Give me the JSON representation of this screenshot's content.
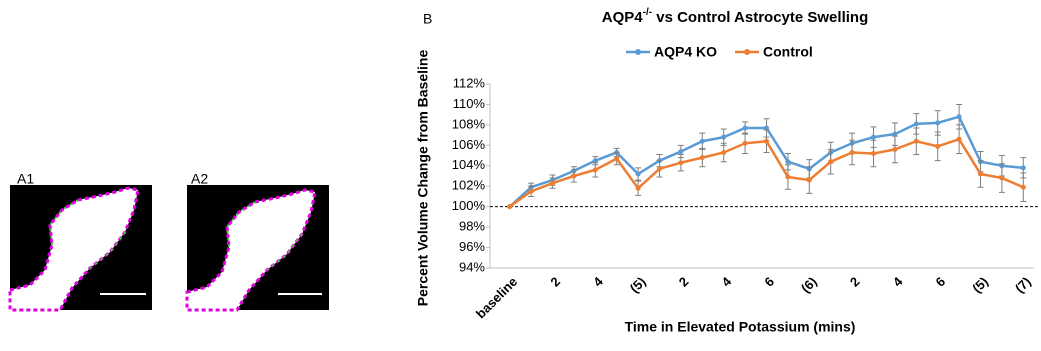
{
  "panels": {
    "a1": "A1",
    "a2": "A2",
    "b": "B"
  },
  "chart_data": {
    "type": "line",
    "title": {
      "main": "AQP4",
      "superscript": "-/-",
      "rest": " vs Control Astrocyte Swelling"
    },
    "x_label": "Time in Elevated Potassium  (mins)",
    "y_label": "Percent Volume Change from Baseline",
    "categories": [
      "baseline",
      null,
      "2",
      null,
      "4",
      null,
      "(5)",
      null,
      "2",
      null,
      "4",
      null,
      "6",
      null,
      "(6)",
      null,
      "2",
      null,
      "4",
      null,
      "6",
      null,
      "(5)",
      null,
      "(7)"
    ],
    "series": [
      {
        "name": "AQP4 KO",
        "color": "#5b9bd5",
        "values": [
          100,
          101.9,
          102.6,
          103.5,
          104.5,
          105.3,
          103.2,
          104.5,
          105.4,
          106.4,
          106.8,
          107.7,
          107.7,
          104.4,
          103.7,
          105.3,
          106.2,
          106.8,
          107.1,
          108.1,
          108.2,
          108.8,
          104.4,
          104.0,
          103.8
        ],
        "errors": [
          0,
          0.4,
          0.5,
          0.4,
          0.4,
          0.4,
          0.6,
          0.6,
          0.6,
          0.8,
          0.8,
          0.6,
          0.9,
          0.8,
          0.9,
          1.0,
          1.0,
          1.0,
          1.1,
          1.0,
          1.2,
          1.2,
          1.0,
          1.0,
          1.0
        ]
      },
      {
        "name": "Control",
        "color": "#ed7d31",
        "values": [
          100,
          101.5,
          102.3,
          103.0,
          103.6,
          104.7,
          101.8,
          103.7,
          104.3,
          104.8,
          105.3,
          106.2,
          106.4,
          102.9,
          102.6,
          104.4,
          105.3,
          105.2,
          105.6,
          106.4,
          105.9,
          106.6,
          103.2,
          102.8,
          101.9
        ],
        "errors": [
          0,
          0.5,
          0.5,
          0.6,
          0.7,
          0.6,
          0.7,
          0.8,
          0.8,
          0.9,
          0.9,
          1.0,
          1.1,
          1.2,
          1.3,
          1.2,
          1.2,
          1.3,
          1.3,
          1.3,
          1.4,
          1.4,
          1.3,
          1.4,
          1.4
        ]
      }
    ],
    "ylim": [
      94,
      112
    ],
    "yticks": [
      {
        "value": 94,
        "label": "94%"
      },
      {
        "value": 96,
        "label": "96%"
      },
      {
        "value": 98,
        "label": "98%"
      },
      {
        "value": 100,
        "label": "100%"
      },
      {
        "value": 102,
        "label": "102%"
      },
      {
        "value": 104,
        "label": "104%"
      },
      {
        "value": 106,
        "label": "106%"
      },
      {
        "value": 108,
        "label": "108%"
      },
      {
        "value": 110,
        "label": "110%"
      },
      {
        "value": 112,
        "label": "112%"
      }
    ],
    "reference_line": 100,
    "legend": "top"
  }
}
